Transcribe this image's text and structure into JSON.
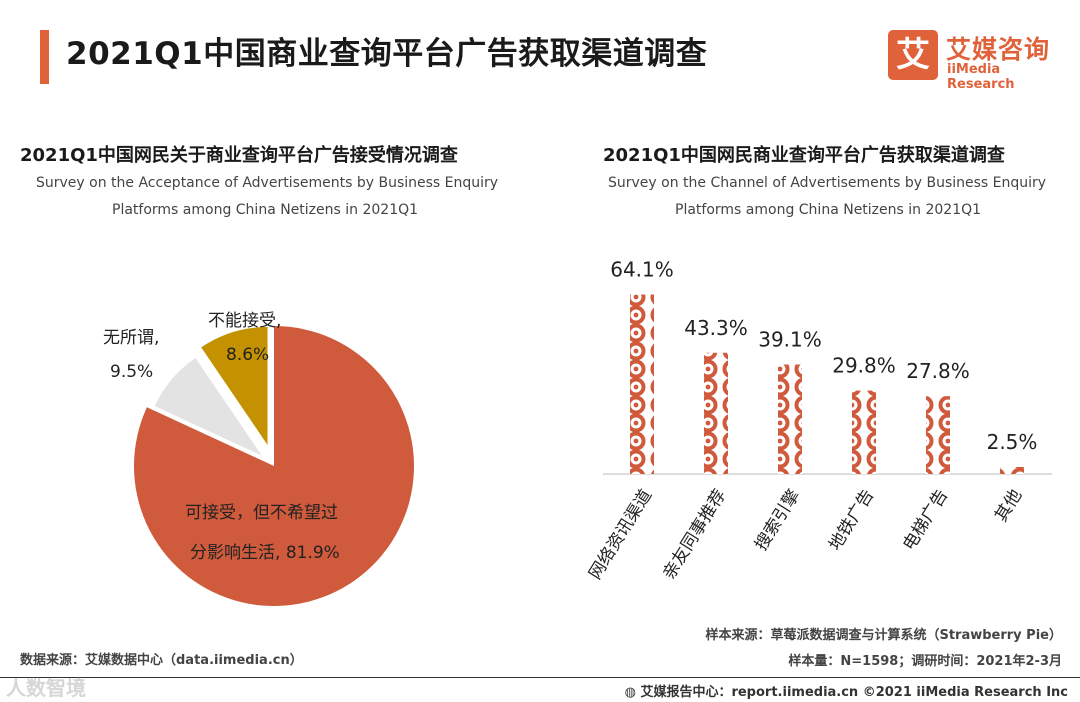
{
  "header": {
    "title": "2021Q1中国商业查询平台广告获取渠道调查",
    "accent_color": "#e0623a"
  },
  "logo": {
    "mark": "艾",
    "name_cn": "艾媒咨询",
    "name_en": "iiMedia Research"
  },
  "chart_data": [
    {
      "type": "pie",
      "title": "2021Q1中国网民关于商业查询平台广告接受情况调查",
      "subtitle_line1": "Survey on the Acceptance of Advertisements by Business Enquiry",
      "subtitle_line2": "Platforms among China Netizens in 2021Q1",
      "slices": [
        {
          "label_line1": "可接受，但不希望过",
          "label_line2": "分影响生活,",
          "value": 81.9,
          "value_text": "81.9%",
          "color": "#d05a3c"
        },
        {
          "label_line1": "不能接受,",
          "value": 8.6,
          "value_text": "8.6%",
          "color": "#e3e3e3"
        },
        {
          "label_line1": "无所谓,",
          "value": 9.5,
          "value_text": "9.5%",
          "color": "#c49200"
        }
      ]
    },
    {
      "type": "bar",
      "title": "2021Q1中国网民商业查询平台广告获取渠道调查",
      "subtitle_line1": "Survey on the Channel of Advertisements by Business Enquiry",
      "subtitle_line2": "Platforms among China Netizens in 2021Q1",
      "categories": [
        "网络资讯渠道",
        "亲友同事推荐",
        "搜索引擎",
        "地铁广告",
        "电梯广告",
        "其他"
      ],
      "values": [
        64.1,
        43.3,
        39.1,
        29.8,
        27.8,
        2.5
      ],
      "value_labels": [
        "64.1%",
        "43.3%",
        "39.1%",
        "29.8%",
        "27.8%",
        "2.5%"
      ],
      "ylim": [
        0,
        70
      ],
      "bar_color": "#d05a3c"
    }
  ],
  "footer": {
    "left_source": "数据来源：艾媒数据中心（data.iimedia.cn）",
    "sample_source": "样本来源：草莓派数据调查与计算系统（Strawberry Pie）",
    "sample_size": "样本量：N=1598；调研时间：2021年2-3月",
    "watermark": "人数智境",
    "bottom_right": "艾媒报告中心：report.iimedia.cn  ©2021  iiMedia Research Inc"
  }
}
